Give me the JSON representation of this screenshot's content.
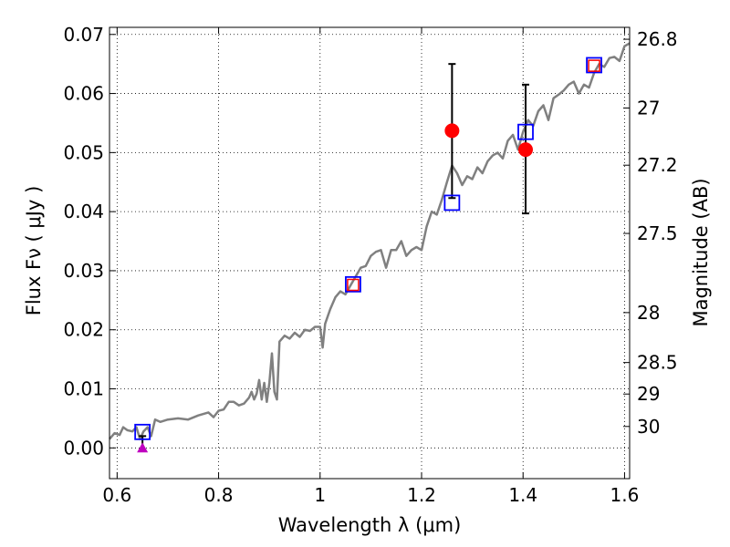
{
  "chart_data": {
    "type": "scatter",
    "xlabel": "Wavelength  λ (μm)",
    "ylabel": "Flux  Fν  ( μJy )",
    "ylabel2": "Magnitude (AB)",
    "xlim": [
      0.585,
      1.61
    ],
    "ylim": [
      -0.0052,
      0.0712
    ],
    "grid": true,
    "x_ticks": [
      0.6,
      0.8,
      1.0,
      1.2,
      1.4,
      1.6
    ],
    "x_tick_labels": [
      "0.6",
      "0.8",
      "1",
      "1.2",
      "1.4",
      "1.6"
    ],
    "y_ticks": [
      0.0,
      0.01,
      0.02,
      0.03,
      0.04,
      0.05,
      0.06,
      0.07
    ],
    "y_tick_labels": [
      "0.00",
      "0.01",
      "0.02",
      "0.03",
      "0.04",
      "0.05",
      "0.06",
      "0.07"
    ],
    "mag_ticks": [
      26.8,
      27,
      27.2,
      27.5,
      28,
      28.5,
      29,
      30
    ],
    "mag_tick_labels": [
      "26.8",
      "27",
      "27.2",
      "27.5",
      "28",
      "28.5",
      "29",
      "30"
    ],
    "series": [
      {
        "type": "line",
        "color": "#808080",
        "x": [
          0.585,
          0.595,
          0.605,
          0.612,
          0.62,
          0.63,
          0.638,
          0.645,
          0.652,
          0.66,
          0.667,
          0.675,
          0.685,
          0.7,
          0.72,
          0.74,
          0.76,
          0.78,
          0.79,
          0.8,
          0.81,
          0.82,
          0.83,
          0.84,
          0.85,
          0.86,
          0.865,
          0.87,
          0.875,
          0.88,
          0.885,
          0.89,
          0.895,
          0.9,
          0.905,
          0.91,
          0.915,
          0.92,
          0.93,
          0.94,
          0.95,
          0.96,
          0.97,
          0.98,
          0.99,
          1.0,
          1.005,
          1.01,
          1.02,
          1.03,
          1.04,
          1.05,
          1.06,
          1.07,
          1.08,
          1.09,
          1.1,
          1.11,
          1.12,
          1.13,
          1.14,
          1.15,
          1.16,
          1.17,
          1.18,
          1.19,
          1.2,
          1.21,
          1.22,
          1.23,
          1.24,
          1.25,
          1.26,
          1.27,
          1.28,
          1.29,
          1.3,
          1.31,
          1.32,
          1.33,
          1.34,
          1.35,
          1.36,
          1.37,
          1.38,
          1.39,
          1.4,
          1.41,
          1.42,
          1.43,
          1.44,
          1.45,
          1.46,
          1.47,
          1.48,
          1.49,
          1.5,
          1.51,
          1.52,
          1.53,
          1.54,
          1.55,
          1.56,
          1.57,
          1.58,
          1.59,
          1.6,
          1.61
        ],
        "y": [
          0.0015,
          0.0025,
          0.0022,
          0.0035,
          0.003,
          0.0028,
          0.0035,
          0.0015,
          0.0028,
          0.0035,
          0.002,
          0.0048,
          0.0044,
          0.0048,
          0.005,
          0.0048,
          0.0055,
          0.006,
          0.0052,
          0.0063,
          0.0065,
          0.0078,
          0.0078,
          0.0072,
          0.0075,
          0.0085,
          0.0095,
          0.0082,
          0.0092,
          0.0115,
          0.0082,
          0.011,
          0.0078,
          0.011,
          0.016,
          0.0095,
          0.0082,
          0.018,
          0.019,
          0.0185,
          0.0195,
          0.0188,
          0.02,
          0.0198,
          0.0205,
          0.0205,
          0.017,
          0.021,
          0.0235,
          0.0255,
          0.0265,
          0.026,
          0.0275,
          0.029,
          0.0305,
          0.0308,
          0.0325,
          0.0332,
          0.0335,
          0.0305,
          0.0335,
          0.0335,
          0.035,
          0.0325,
          0.0335,
          0.034,
          0.0335,
          0.0375,
          0.04,
          0.0395,
          0.042,
          0.045,
          0.0478,
          0.0465,
          0.0445,
          0.046,
          0.0455,
          0.0475,
          0.0465,
          0.0485,
          0.0495,
          0.05,
          0.049,
          0.052,
          0.053,
          0.0505,
          0.0535,
          0.0555,
          0.0545,
          0.057,
          0.058,
          0.0555,
          0.0592,
          0.0598,
          0.0605,
          0.0615,
          0.062,
          0.06,
          0.0615,
          0.061,
          0.0635,
          0.065,
          0.0645,
          0.066,
          0.0662,
          0.0655,
          0.068,
          0.0685
        ]
      },
      {
        "type": "open-square",
        "color": "#0000ff",
        "x": [
          0.65,
          1.065,
          1.26,
          1.405,
          1.54
        ],
        "y": [
          0.0027,
          0.0277,
          0.0415,
          0.0535,
          0.0648
        ]
      },
      {
        "type": "open-square-small",
        "color": "#ff0000",
        "x": [
          1.065,
          1.54
        ],
        "y": [
          0.0276,
          0.0647
        ]
      },
      {
        "type": "filled-circle",
        "color": "#ff0000",
        "x": [
          1.26,
          1.405
        ],
        "y": [
          0.0537,
          0.0505
        ]
      },
      {
        "type": "error-bar",
        "color": "#000000",
        "x": [
          0.65,
          1.26,
          1.405
        ],
        "y_low": [
          -0.0003,
          0.0423,
          0.0397
        ],
        "y_high": [
          0.002,
          0.065,
          0.0615
        ]
      },
      {
        "type": "triangle",
        "color": "#bf00bf",
        "x": [
          0.65
        ],
        "y": [
          0.0
        ]
      }
    ]
  }
}
